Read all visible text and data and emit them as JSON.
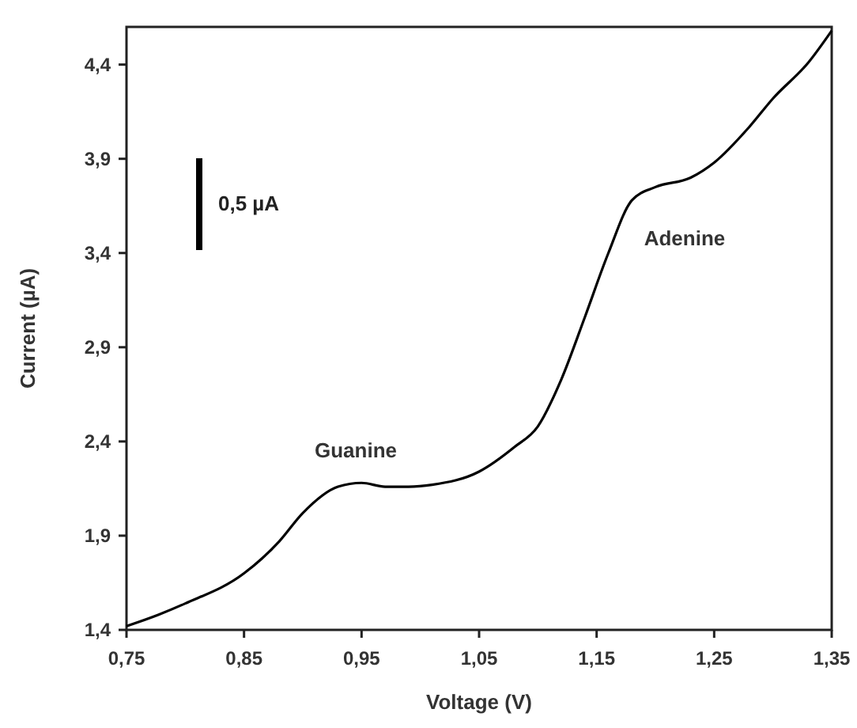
{
  "chart_data": {
    "type": "line",
    "xlabel": "Voltage (V)",
    "ylabel": "Current (µA)",
    "x": [
      0.75,
      0.777,
      0.8,
      0.85,
      0.88,
      0.9,
      0.93,
      0.95,
      0.97,
      0.99,
      1.01,
      1.05,
      1.08,
      1.1,
      1.12,
      1.14,
      1.16,
      1.18,
      1.2,
      1.23,
      1.25,
      1.28,
      1.3,
      1.33,
      1.35
    ],
    "series": [
      {
        "color": "#000000",
        "values": [
          1.42,
          1.48,
          1.54,
          1.7,
          1.87,
          2.02,
          2.16,
          2.18,
          2.16,
          2.16,
          2.17,
          2.24,
          2.37,
          2.48,
          2.73,
          3.06,
          3.4,
          3.68,
          3.75,
          3.8,
          3.88,
          4.07,
          4.22,
          4.41,
          4.58
        ]
      }
    ],
    "xlim": [
      0.75,
      1.35
    ],
    "ylim": [
      1.4,
      4.6
    ],
    "xticks": [
      {
        "value": 0.75,
        "label": "0,75"
      },
      {
        "value": 0.85,
        "label": "0,85"
      },
      {
        "value": 0.95,
        "label": "0,95"
      },
      {
        "value": 1.05,
        "label": "1,05"
      },
      {
        "value": 1.15,
        "label": "1,15"
      },
      {
        "value": 1.25,
        "label": "1,25"
      },
      {
        "value": 1.35,
        "label": "1,35"
      }
    ],
    "yticks": [
      {
        "value": 1.4,
        "label": "1,4"
      },
      {
        "value": 1.9,
        "label": "1,9"
      },
      {
        "value": 2.4,
        "label": "2,4"
      },
      {
        "value": 2.9,
        "label": "2,9"
      },
      {
        "value": 3.4,
        "label": "3,4"
      },
      {
        "value": 3.9,
        "label": "3,9"
      },
      {
        "value": 4.4,
        "label": "4,4"
      }
    ],
    "annotations": [
      "Guanine",
      "Adenine",
      "0,5 µA"
    ],
    "grid": false,
    "marker": "none",
    "line_style": "solid"
  }
}
